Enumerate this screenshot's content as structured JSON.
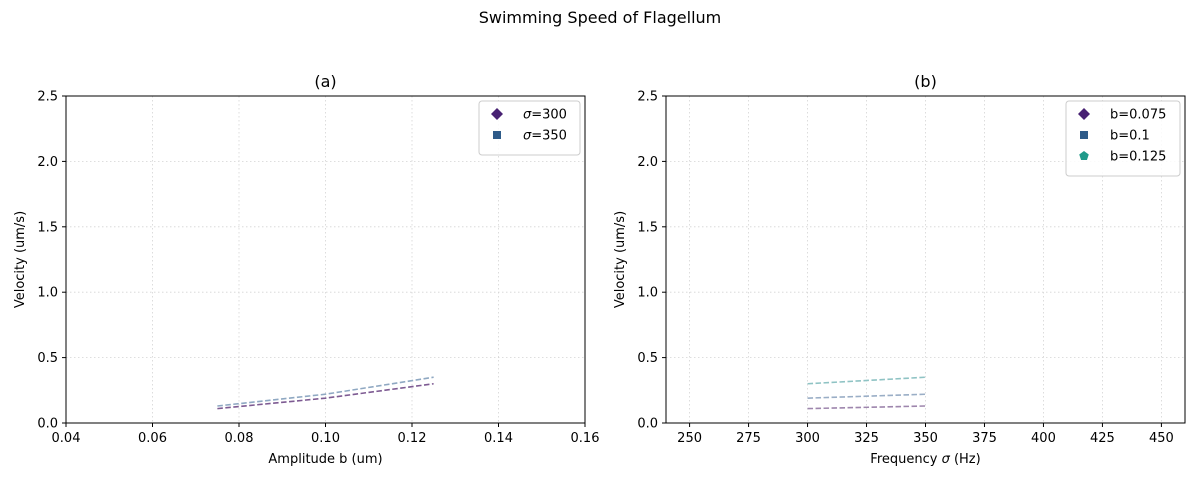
{
  "figure": {
    "title": "Swimming Speed of Flagellum"
  },
  "chart_data": [
    {
      "type": "line",
      "title": "(a)",
      "xlabel": "Amplitude b (um)",
      "ylabel": "Velocity (um/s)",
      "xlim": [
        0.04,
        0.16
      ],
      "ylim": [
        0,
        2.5
      ],
      "xticks": [
        0.04,
        0.06,
        0.08,
        0.1,
        0.12,
        0.14,
        0.16
      ],
      "xtick_labels": [
        "0.04",
        "0.06",
        "0.08",
        "0.10",
        "0.12",
        "0.14",
        "0.16"
      ],
      "yticks": [
        0.0,
        0.5,
        1.0,
        1.5,
        2.0,
        2.5
      ],
      "ytick_labels": [
        "0.0",
        "0.5",
        "1.0",
        "1.5",
        "2.0",
        "2.5"
      ],
      "grid": true,
      "legend_position": "top-right",
      "series": [
        {
          "name": "σ=300",
          "legend_prefix": "σ",
          "legend_suffix": "=300",
          "marker": "diamond",
          "color": "#7d5a92",
          "marker_color": "#482173",
          "x": [
            0.075,
            0.1,
            0.125
          ],
          "y": [
            0.11,
            0.19,
            0.3
          ]
        },
        {
          "name": "σ=350",
          "legend_prefix": "σ",
          "legend_suffix": "=350",
          "marker": "square",
          "color": "#8fa8c2",
          "marker_color": "#2e5b89",
          "x": [
            0.075,
            0.1,
            0.125
          ],
          "y": [
            0.13,
            0.22,
            0.35
          ]
        }
      ]
    },
    {
      "type": "line",
      "title": "(b)",
      "xlabel": "Frequency σ (Hz)",
      "ylabel": "Velocity (um/s)",
      "xlim": [
        240,
        460
      ],
      "ylim": [
        0,
        2.5
      ],
      "xticks": [
        250,
        275,
        300,
        325,
        350,
        375,
        400,
        425,
        450
      ],
      "xtick_labels": [
        "250",
        "275",
        "300",
        "325",
        "350",
        "375",
        "400",
        "425",
        "450"
      ],
      "yticks": [
        0.0,
        0.5,
        1.0,
        1.5,
        2.0,
        2.5
      ],
      "ytick_labels": [
        "0.0",
        "0.5",
        "1.0",
        "1.5",
        "2.0",
        "2.5"
      ],
      "grid": true,
      "legend_position": "top-right",
      "series": [
        {
          "name": "b=0.075",
          "marker": "diamond",
          "color": "#9e86ad",
          "marker_color": "#482173",
          "x": [
            300,
            350
          ],
          "y": [
            0.11,
            0.13
          ]
        },
        {
          "name": "b=0.1",
          "marker": "square",
          "color": "#9aaec6",
          "marker_color": "#2e5b89",
          "x": [
            300,
            350
          ],
          "y": [
            0.19,
            0.22
          ]
        },
        {
          "name": "b=0.125",
          "marker": "pentagon",
          "color": "#8fc3c4",
          "marker_color": "#1f9a8a",
          "x": [
            300,
            350
          ],
          "y": [
            0.3,
            0.35
          ]
        }
      ]
    }
  ]
}
